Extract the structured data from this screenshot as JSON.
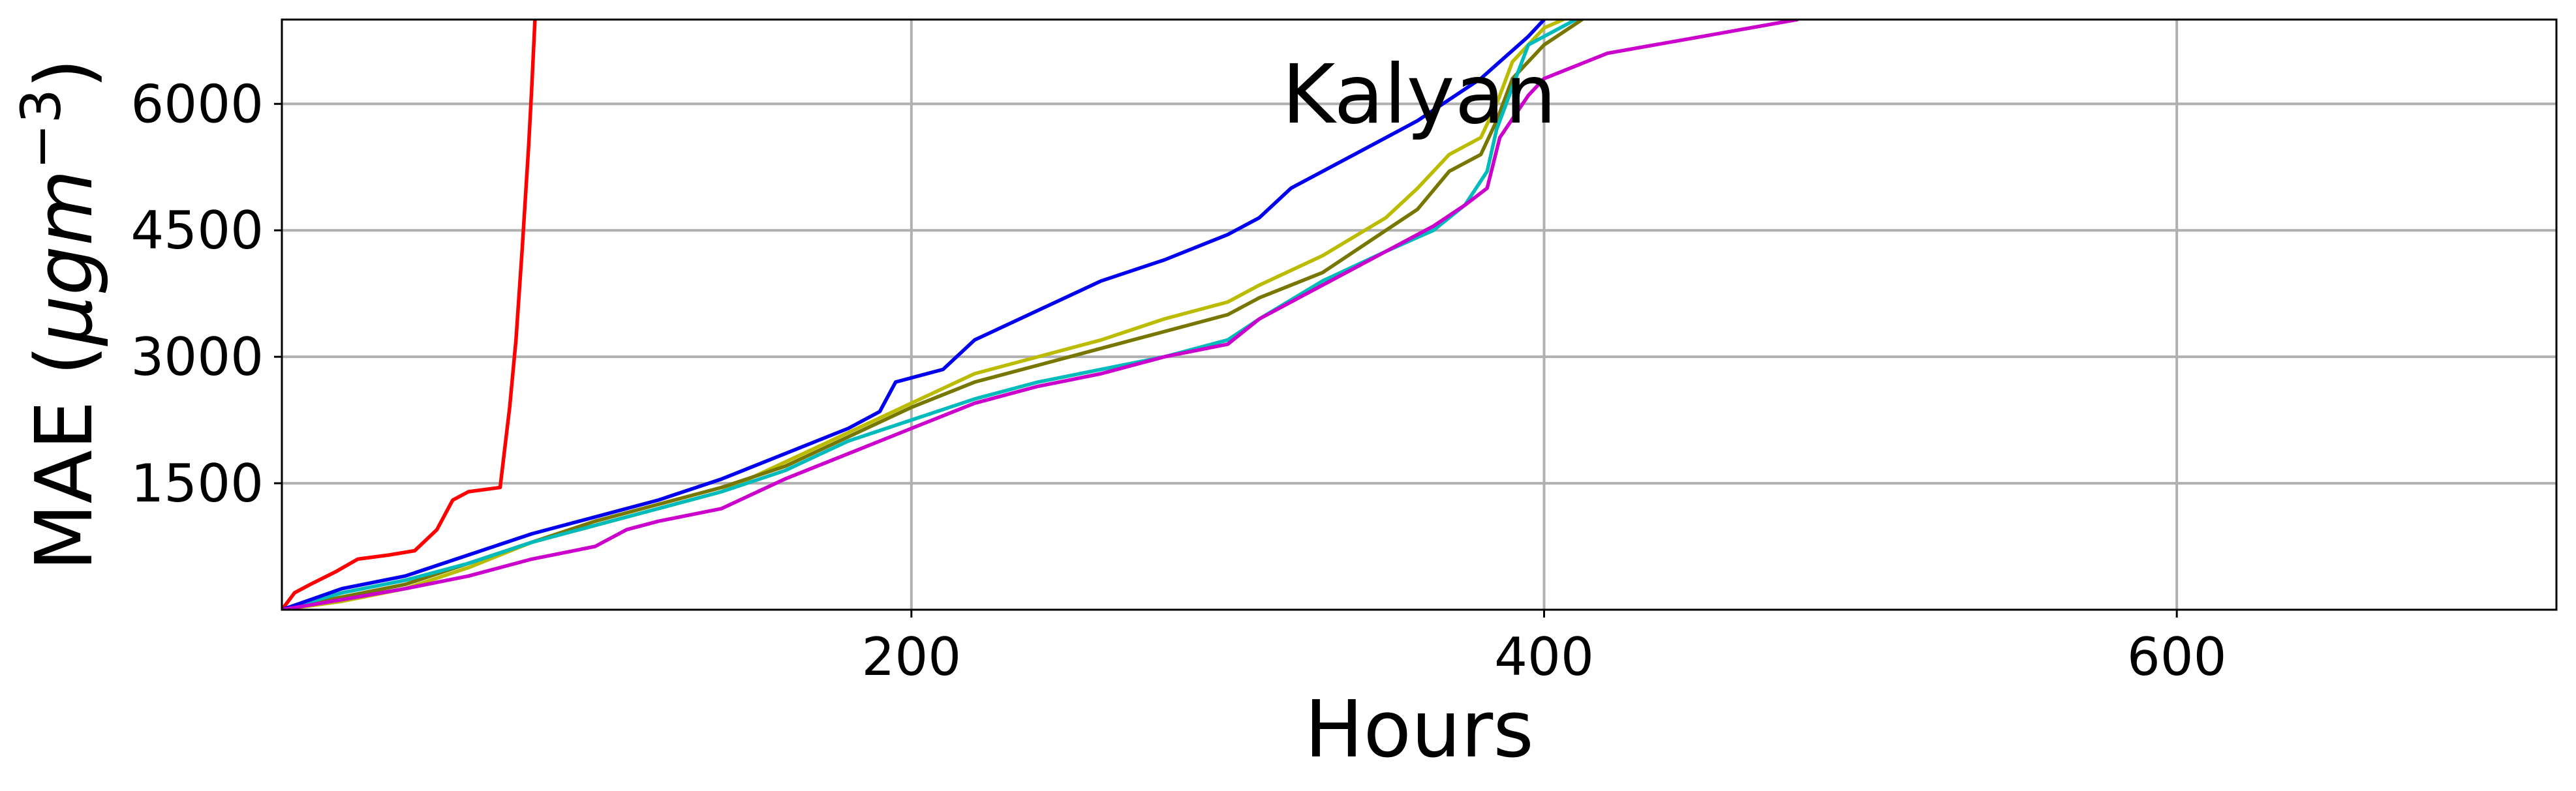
{
  "chart_data": {
    "type": "line",
    "title": "Kalyan",
    "xlabel": "Hours",
    "ylabel_text": "MAE (",
    "ylabel_mu": "μ",
    "ylabel_gm": "gm",
    "ylabel_exp": "−3",
    "ylabel_close": ")",
    "xlim": [
      1,
      720
    ],
    "ylim": [
      0,
      7000
    ],
    "xticks": [
      200,
      400,
      600
    ],
    "xtick_labels": [
      "200",
      "400",
      "600"
    ],
    "yticks": [
      1500,
      3000,
      4500,
      6000
    ],
    "ytick_labels": [
      "1500",
      "3000",
      "4500",
      "6000"
    ],
    "grid": true,
    "series": [
      {
        "color": "#ff0000",
        "points": [
          [
            1,
            0
          ],
          [
            5,
            200
          ],
          [
            10,
            300
          ],
          [
            18,
            450
          ],
          [
            25,
            600
          ],
          [
            35,
            650
          ],
          [
            43,
            700
          ],
          [
            50,
            950
          ],
          [
            55,
            1300
          ],
          [
            60,
            1400
          ],
          [
            70,
            1450
          ],
          [
            73,
            2400
          ],
          [
            75,
            3200
          ],
          [
            77,
            4300
          ],
          [
            79,
            5500
          ],
          [
            80,
            6200
          ],
          [
            81,
            7000
          ]
        ]
      },
      {
        "color": "#bbbb00",
        "points": [
          [
            1,
            0
          ],
          [
            20,
            100
          ],
          [
            40,
            250
          ],
          [
            60,
            500
          ],
          [
            80,
            800
          ],
          [
            100,
            1000
          ],
          [
            120,
            1200
          ],
          [
            140,
            1400
          ],
          [
            160,
            1750
          ],
          [
            180,
            2100
          ],
          [
            200,
            2450
          ],
          [
            220,
            2800
          ],
          [
            240,
            3000
          ],
          [
            260,
            3200
          ],
          [
            280,
            3450
          ],
          [
            300,
            3650
          ],
          [
            310,
            3850
          ],
          [
            330,
            4200
          ],
          [
            350,
            4650
          ],
          [
            360,
            5000
          ],
          [
            370,
            5400
          ],
          [
            380,
            5600
          ],
          [
            385,
            6000
          ],
          [
            390,
            6500
          ],
          [
            400,
            6900
          ],
          [
            406,
            7000
          ]
        ]
      },
      {
        "color": "#777700",
        "points": [
          [
            1,
            0
          ],
          [
            20,
            150
          ],
          [
            40,
            300
          ],
          [
            60,
            550
          ],
          [
            80,
            800
          ],
          [
            100,
            1050
          ],
          [
            120,
            1250
          ],
          [
            140,
            1450
          ],
          [
            160,
            1700
          ],
          [
            180,
            2050
          ],
          [
            200,
            2400
          ],
          [
            220,
            2700
          ],
          [
            240,
            2900
          ],
          [
            260,
            3100
          ],
          [
            280,
            3300
          ],
          [
            300,
            3500
          ],
          [
            310,
            3700
          ],
          [
            330,
            4000
          ],
          [
            350,
            4500
          ],
          [
            360,
            4750
          ],
          [
            370,
            5200
          ],
          [
            380,
            5400
          ],
          [
            385,
            5800
          ],
          [
            390,
            6300
          ],
          [
            400,
            6700
          ],
          [
            412,
            7000
          ]
        ]
      },
      {
        "color": "#00bbbb",
        "points": [
          [
            1,
            0
          ],
          [
            20,
            200
          ],
          [
            40,
            350
          ],
          [
            60,
            550
          ],
          [
            80,
            800
          ],
          [
            100,
            1000
          ],
          [
            120,
            1200
          ],
          [
            140,
            1400
          ],
          [
            160,
            1650
          ],
          [
            180,
            2000
          ],
          [
            200,
            2250
          ],
          [
            220,
            2500
          ],
          [
            240,
            2700
          ],
          [
            260,
            2850
          ],
          [
            280,
            3000
          ],
          [
            300,
            3200
          ],
          [
            310,
            3450
          ],
          [
            330,
            3900
          ],
          [
            350,
            4250
          ],
          [
            365,
            4500
          ],
          [
            375,
            4800
          ],
          [
            382,
            5200
          ],
          [
            385,
            5700
          ],
          [
            390,
            6200
          ],
          [
            395,
            6700
          ],
          [
            410,
            7000
          ]
        ]
      },
      {
        "color": "#0000ee",
        "points": [
          [
            1,
            0
          ],
          [
            20,
            250
          ],
          [
            40,
            400
          ],
          [
            60,
            650
          ],
          [
            80,
            900
          ],
          [
            100,
            1100
          ],
          [
            120,
            1300
          ],
          [
            140,
            1550
          ],
          [
            160,
            1850
          ],
          [
            180,
            2150
          ],
          [
            190,
            2350
          ],
          [
            195,
            2700
          ],
          [
            210,
            2850
          ],
          [
            220,
            3200
          ],
          [
            240,
            3550
          ],
          [
            260,
            3900
          ],
          [
            280,
            4150
          ],
          [
            300,
            4450
          ],
          [
            310,
            4650
          ],
          [
            320,
            5000
          ],
          [
            340,
            5400
          ],
          [
            360,
            5800
          ],
          [
            380,
            6300
          ],
          [
            395,
            6800
          ],
          [
            400,
            7000
          ]
        ]
      },
      {
        "color": "#cc00cc",
        "points": [
          [
            1,
            0
          ],
          [
            20,
            120
          ],
          [
            40,
            250
          ],
          [
            60,
            400
          ],
          [
            80,
            600
          ],
          [
            100,
            750
          ],
          [
            110,
            950
          ],
          [
            120,
            1050
          ],
          [
            140,
            1200
          ],
          [
            160,
            1550
          ],
          [
            180,
            1850
          ],
          [
            200,
            2150
          ],
          [
            220,
            2450
          ],
          [
            240,
            2650
          ],
          [
            260,
            2800
          ],
          [
            280,
            3000
          ],
          [
            300,
            3150
          ],
          [
            310,
            3450
          ],
          [
            330,
            3850
          ],
          [
            350,
            4250
          ],
          [
            365,
            4550
          ],
          [
            375,
            4800
          ],
          [
            382,
            5000
          ],
          [
            386,
            5600
          ],
          [
            395,
            6100
          ],
          [
            400,
            6300
          ],
          [
            420,
            6600
          ],
          [
            450,
            6800
          ],
          [
            480,
            7000
          ]
        ]
      }
    ]
  }
}
